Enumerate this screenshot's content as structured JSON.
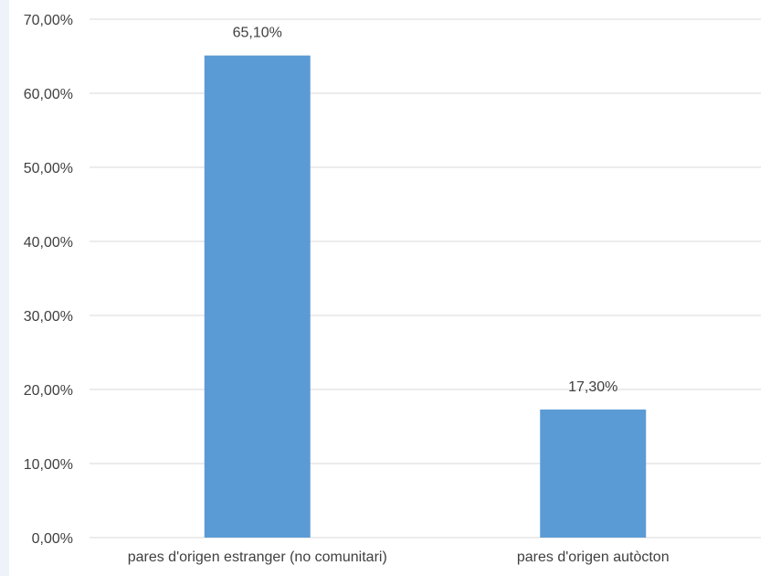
{
  "chart_data": {
    "type": "bar",
    "categories": [
      "pares d'origen estranger (no comunitari)",
      "pares d'origen autòcton"
    ],
    "values": [
      65.1,
      17.3
    ],
    "data_labels": [
      "65,10%",
      "17,30%"
    ],
    "ylim": [
      0,
      70
    ],
    "yticks": [
      0,
      10,
      20,
      30,
      40,
      50,
      60,
      70
    ],
    "ytick_labels": [
      "0,00%",
      "10,00%",
      "20,00%",
      "30,00%",
      "40,00%",
      "50,00%",
      "60,00%",
      "70,00%"
    ],
    "grid": true,
    "legend": "none",
    "title": "",
    "xlabel": "",
    "ylabel": "",
    "bar_color": "#5b9bd5",
    "grid_color": "#d9d9d9"
  }
}
